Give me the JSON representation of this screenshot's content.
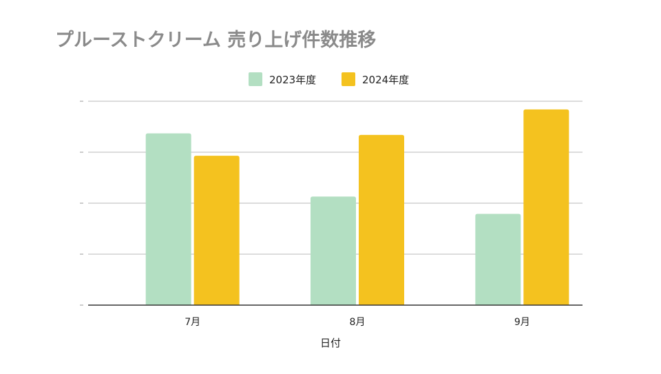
{
  "chart_data": {
    "type": "bar",
    "title": "プルーストクリーム 売り上げ件数推移",
    "xlabel": "日付",
    "ylabel": "",
    "categories": [
      "7月",
      "8月",
      "9月"
    ],
    "series": [
      {
        "name": "2023年度",
        "color": "#b3dfc2",
        "values": [
          3.37,
          2.13,
          1.79
        ]
      },
      {
        "name": "2024年度",
        "color": "#f4c21f",
        "values": [
          2.93,
          3.34,
          3.84
        ]
      }
    ],
    "ylim": [
      0,
      4
    ],
    "grid": true,
    "legend": "top-center"
  }
}
